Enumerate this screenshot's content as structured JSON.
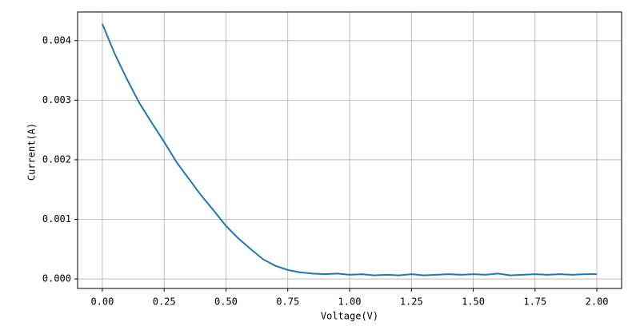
{
  "chart_data": {
    "type": "line",
    "xlabel": "Voltage(V)",
    "ylabel": "Current(A)",
    "x": [
      0,
      0.05,
      0.1,
      0.15,
      0.2,
      0.25,
      0.3,
      0.35,
      0.4,
      0.45,
      0.5,
      0.55,
      0.6,
      0.65,
      0.7,
      0.75,
      0.8,
      0.85,
      0.9,
      0.95,
      1.0,
      1.05,
      1.1,
      1.15,
      1.2,
      1.25,
      1.3,
      1.35,
      1.4,
      1.45,
      1.5,
      1.55,
      1.6,
      1.65,
      1.7,
      1.75,
      1.8,
      1.85,
      1.9,
      1.95,
      2.0
    ],
    "values": [
      0.00428,
      0.00378,
      0.00335,
      0.00295,
      0.00262,
      0.0023,
      0.00196,
      0.00168,
      0.0014,
      0.00115,
      0.00089,
      0.00068,
      0.0005,
      0.00033,
      0.00022,
      0.00015,
      0.00011,
      9e-05,
      8e-05,
      9e-05,
      7e-05,
      8e-05,
      6e-05,
      7e-05,
      6e-05,
      8e-05,
      6e-05,
      7e-05,
      8e-05,
      7e-05,
      8e-05,
      7e-05,
      9e-05,
      6e-05,
      7e-05,
      8e-05,
      7e-05,
      8e-05,
      7e-05,
      8e-05,
      8e-05
    ],
    "color": "#1f77b4",
    "xlim": [
      -0.1,
      2.1
    ],
    "xticks": [
      {
        "value": 0,
        "label": "0.00"
      },
      0.25,
      {
        "value": 0.5,
        "label": "0.50"
      },
      0.75,
      {
        "value": 1,
        "label": "1.00"
      },
      1.25,
      {
        "value": 1.5,
        "label": "1.50"
      },
      1.75,
      {
        "value": 2,
        "label": "2.00"
      }
    ],
    "ylim": [
      -0.00016,
      0.00448
    ],
    "yticks": [
      {
        "value": 0,
        "label": "0.000"
      },
      0.001,
      0.002,
      0.003,
      0.004
    ],
    "grid": true
  }
}
